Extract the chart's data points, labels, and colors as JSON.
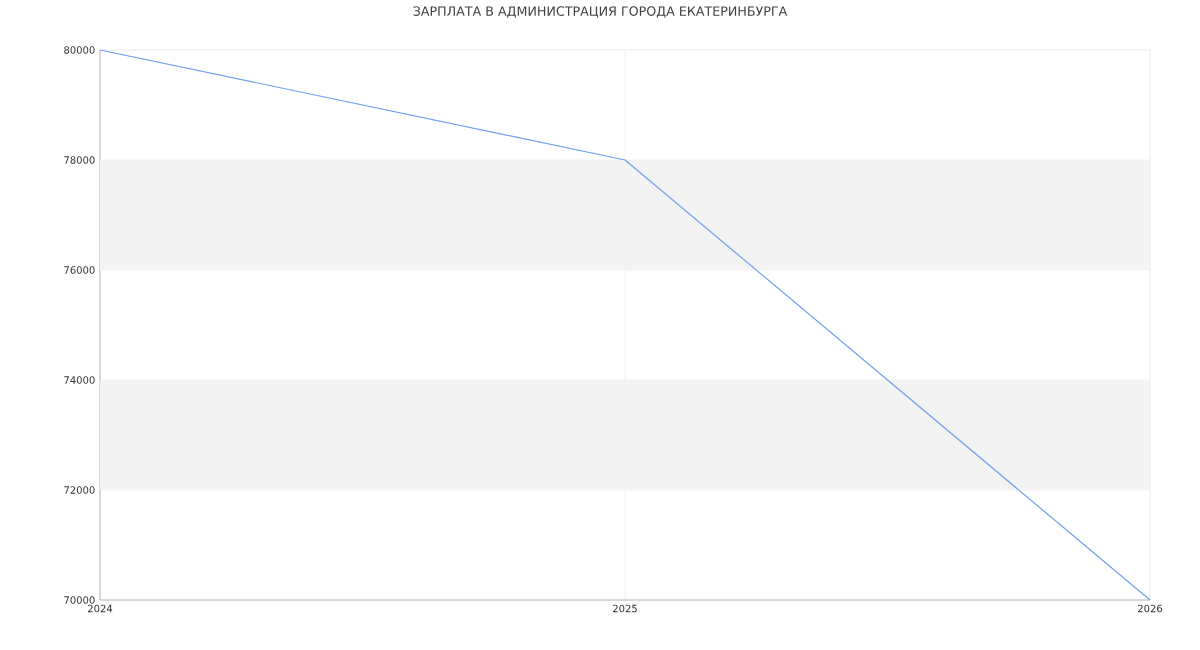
{
  "chart_data": {
    "type": "line",
    "title": "ЗАРПЛАТА В АДМИНИСТРАЦИЯ ГОРОДА ЕКАТЕРИНБУРГА",
    "x": [
      2024,
      2025,
      2026
    ],
    "series": [
      {
        "color": "#6f9ef3",
        "values": [
          80000,
          78000,
          70000
        ]
      }
    ],
    "xlim": [
      2024,
      2026
    ],
    "xticks": [
      2024,
      2025,
      2026
    ],
    "ylim": [
      70000,
      80000
    ],
    "yticks": [
      70000,
      72000,
      74000,
      76000,
      78000,
      80000
    ],
    "bands": [
      {
        "axis": "y",
        "from": 72000,
        "to": 74000,
        "color": "#f3f3f3"
      },
      {
        "axis": "y",
        "from": 76000,
        "to": 78000,
        "color": "#f3f3f3"
      }
    ],
    "grid": true,
    "marker": "none",
    "line_style": "solid"
  }
}
